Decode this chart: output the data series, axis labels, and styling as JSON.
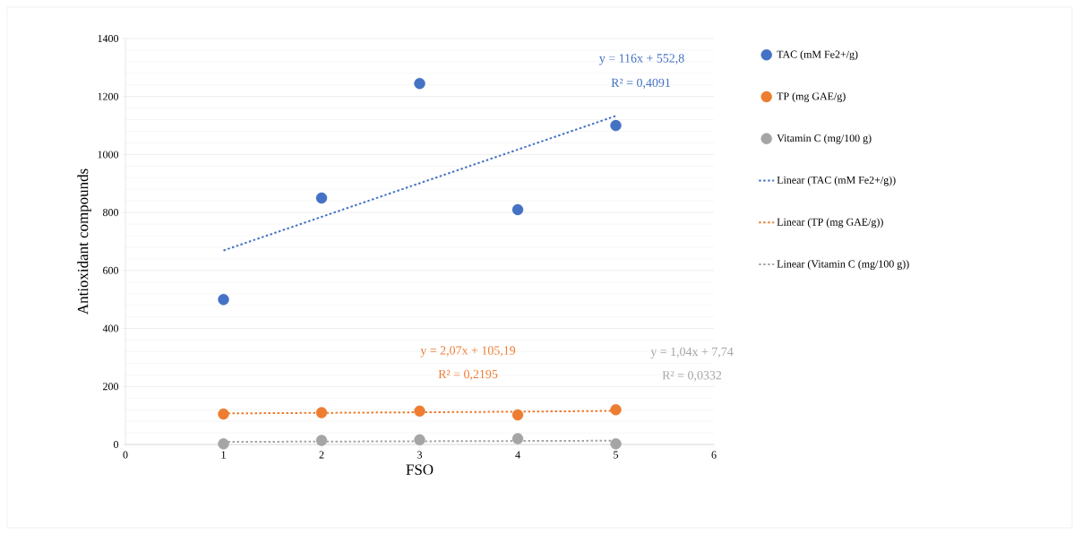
{
  "chart_data": {
    "type": "scatter",
    "xlabel": "FSO",
    "ylabel": "Antioxidant compounds",
    "x": [
      1,
      2,
      3,
      4,
      5
    ],
    "series": [
      {
        "name": "TAC (mM Fe2+/g)",
        "marker": "circle",
        "color": "#4472c4",
        "values": [
          500,
          850,
          1245,
          810,
          1100
        ]
      },
      {
        "name": "TP (mg GAE/g)",
        "marker": "circle",
        "color": "#ed7d31",
        "values": [
          105,
          110,
          115,
          102,
          120
        ]
      },
      {
        "name": "Vitamin C (mg/100 g)",
        "marker": "circle",
        "color": "#a5a5a5",
        "values": [
          2,
          14,
          16,
          20,
          2
        ]
      },
      {
        "name": "Linear (TAC (mM Fe2+/g))",
        "type": "line",
        "line_style": "dotted",
        "marker": "none",
        "color": "#4472c4",
        "values": [
          669,
          785,
          901,
          1017,
          1133
        ]
      },
      {
        "name": "Linear (TP (mg GAE/g))",
        "type": "line",
        "line_style": "dotted",
        "marker": "none",
        "color": "#ed7d31",
        "values": [
          107,
          109,
          111,
          113,
          116
        ]
      },
      {
        "name": "Linear (Vitamin C (mg/100 g))",
        "type": "line",
        "line_style": "dotted",
        "marker": "none",
        "color": "#a5a5a5",
        "values": [
          9,
          10,
          11,
          12,
          13
        ]
      }
    ],
    "annotations": [
      "y = 116x + 552,8",
      "R² = 0,4091",
      "y = 2,07x + 105,19",
      "R² = 0,2195",
      "y = 1,04x + 7,74",
      "R² = 0,0332"
    ],
    "xlim": [
      0,
      6
    ],
    "xticks": [
      0,
      1,
      2,
      3,
      4,
      5,
      6
    ],
    "ylim": [
      0,
      1400
    ],
    "yticks": [
      0,
      200,
      400,
      600,
      800,
      1000,
      1200,
      1400
    ],
    "grid": "y",
    "legend": "right"
  }
}
